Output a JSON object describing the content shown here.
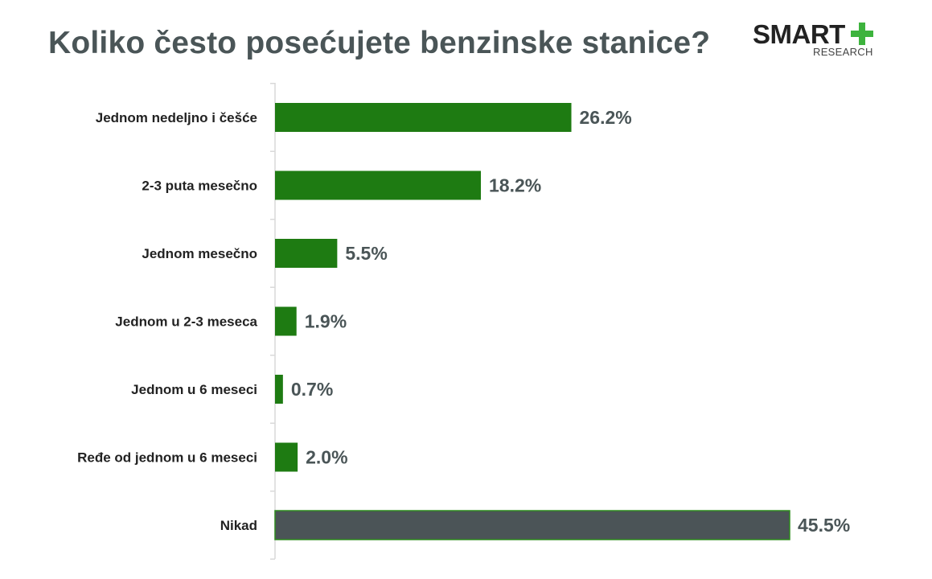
{
  "logo": {
    "word": "SMART",
    "sub": "RESEARCH",
    "plus_color": "#3db33d"
  },
  "chart_data": {
    "type": "bar",
    "orientation": "horizontal",
    "title": "Koliko često posećujete benzinske stanice?",
    "categories": [
      "Jednom nedeljno i češće",
      "2-3 puta mesečno",
      "Jednom mesečno",
      "Jednom u 2-3 meseca",
      "Jednom u 6 meseci",
      "Ređe od jednom u 6 meseci",
      "Nikad"
    ],
    "values": [
      26.2,
      18.2,
      5.5,
      1.9,
      0.7,
      2.0,
      45.5
    ],
    "value_labels": [
      "26.2%",
      "18.2%",
      "5.5%",
      "1.9%",
      "0.7%",
      "2.0%",
      "45.5%"
    ],
    "colors": [
      "#1e7b12",
      "#1e7b12",
      "#1e7b12",
      "#1e7b12",
      "#1e7b12",
      "#1e7b12",
      "#4b5457"
    ],
    "xlim": [
      0,
      45.5
    ],
    "grid": false,
    "legend": "none"
  }
}
